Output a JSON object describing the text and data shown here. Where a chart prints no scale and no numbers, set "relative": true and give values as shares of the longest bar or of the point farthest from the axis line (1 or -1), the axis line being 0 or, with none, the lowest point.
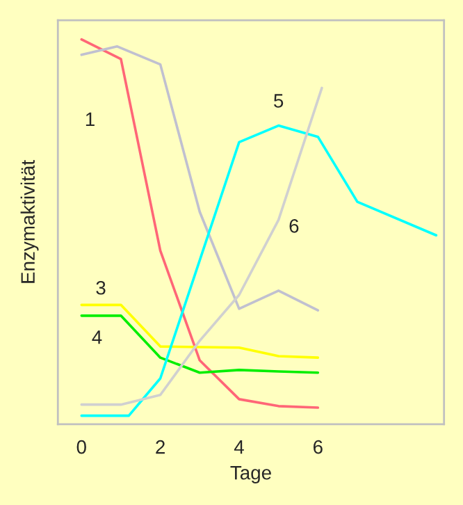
{
  "chart_data": {
    "type": "line",
    "relative": true,
    "xlabel": "Tage",
    "ylabel": "Enzymaktivität",
    "xlim": [
      -0.6,
      9.2
    ],
    "xticks": [
      0,
      2,
      4,
      6
    ],
    "grid": false,
    "legend": false,
    "marker": "none",
    "line_style": "solid",
    "series": [
      {
        "name": "1",
        "color": "#ff6677",
        "x": [
          0,
          1,
          2,
          3,
          4,
          5,
          6
        ],
        "values": [
          1.0,
          0.949,
          0.451,
          0.166,
          0.065,
          0.047,
          0.043
        ]
      },
      {
        "name": "2",
        "color": "#c0c0d0",
        "x": [
          0,
          0.9,
          2,
          3,
          4,
          5,
          6
        ],
        "values": [
          0.96,
          0.982,
          0.935,
          0.552,
          0.3,
          0.347,
          0.296
        ]
      },
      {
        "name": "3",
        "color": "#ffff00",
        "x": [
          0,
          1,
          2,
          4,
          5,
          6
        ],
        "values": [
          0.31,
          0.31,
          0.202,
          0.199,
          0.177,
          0.173
        ]
      },
      {
        "name": "4",
        "color": "#00ee00",
        "x": [
          0,
          1,
          2,
          3,
          4,
          5,
          6
        ],
        "values": [
          0.282,
          0.282,
          0.173,
          0.134,
          0.141,
          0.137,
          0.134
        ]
      },
      {
        "name": "5",
        "color": "#00ffff",
        "x": [
          0,
          1.2,
          2,
          4,
          5,
          6,
          7,
          9
        ],
        "values": [
          0.022,
          0.022,
          0.119,
          0.733,
          0.776,
          0.747,
          0.578,
          0.491
        ]
      },
      {
        "name": "6",
        "color": "#d0d0d0",
        "x": [
          0,
          1,
          2,
          3,
          4,
          5,
          6.1
        ],
        "values": [
          0.051,
          0.051,
          0.076,
          0.217,
          0.336,
          0.531,
          0.874
        ]
      }
    ]
  }
}
